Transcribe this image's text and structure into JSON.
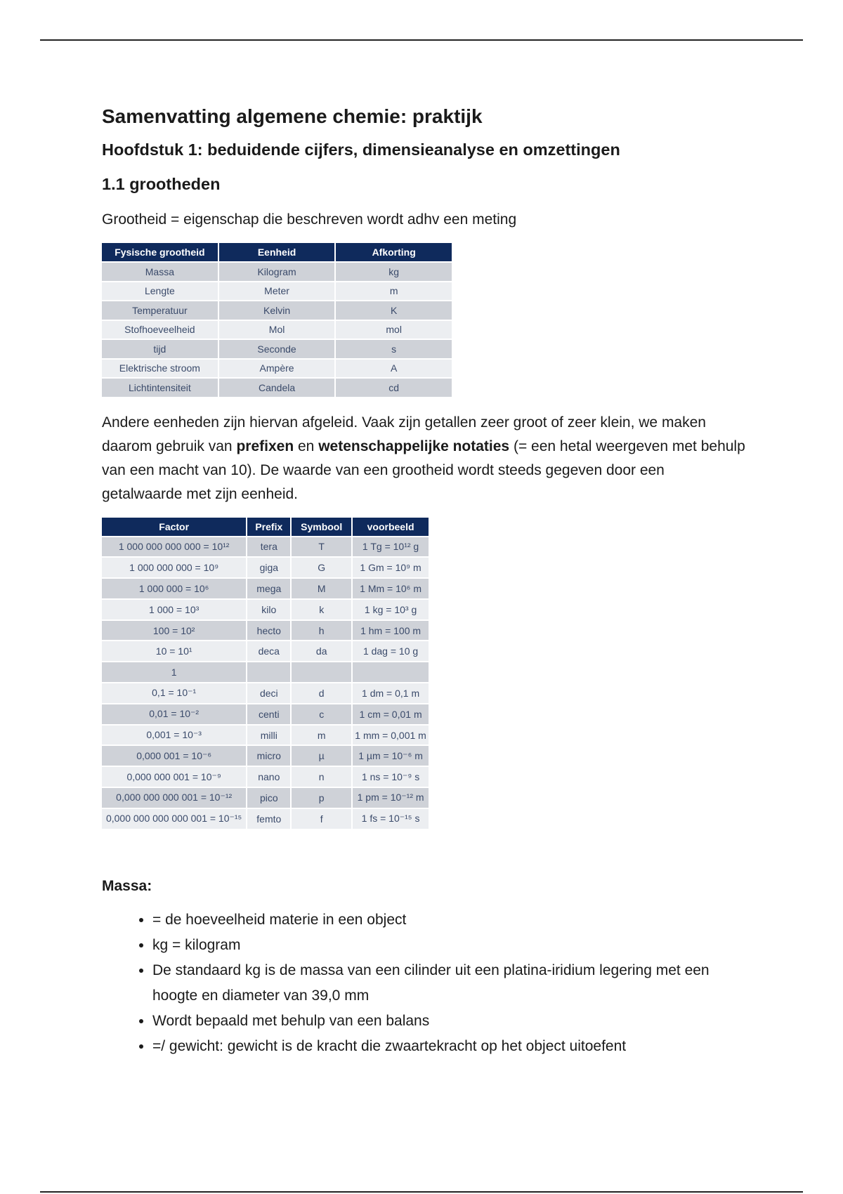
{
  "title": "Samenvatting algemene chemie: praktijk",
  "chapter": "Hoofdstuk 1: beduidende cijfers, dimensieanalyse en omzettingen",
  "section": "1.1 grootheden",
  "definition": "Grootheid = eigenschap die beschreven wordt adhv een meting",
  "table1": {
    "headers": [
      "Fysische grootheid",
      "Eenheid",
      "Afkorting"
    ],
    "rows": [
      [
        "Massa",
        "Kilogram",
        "kg"
      ],
      [
        "Lengte",
        "Meter",
        "m"
      ],
      [
        "Temperatuur",
        "Kelvin",
        "K"
      ],
      [
        "Stofhoeveelheid",
        "Mol",
        "mol"
      ],
      [
        "tijd",
        "Seconde",
        "s"
      ],
      [
        "Elektrische stroom",
        "Ampère",
        "A"
      ],
      [
        "Lichtintensiteit",
        "Candela",
        "cd"
      ]
    ]
  },
  "para": {
    "t1": "Andere eenheden zijn hiervan afgeleid. Vaak zijn getallen zeer groot of zeer klein, we maken daarom gebruik van ",
    "b1": "prefixen",
    "t2": " en ",
    "b2": "wetenschappelijke notaties",
    "t3": " (= een hetal weergeven met behulp van een macht van 10). De waarde van een grootheid wordt steeds gegeven door een getalwaarde met zijn eenheid."
  },
  "table2": {
    "headers": [
      "Factor",
      "Prefix",
      "Symbool",
      "voorbeeld"
    ],
    "rows": [
      [
        "1 000 000 000 000 = 10¹²",
        "tera",
        "T",
        "1 Tg = 10¹² g"
      ],
      [
        "1 000 000 000 = 10⁹",
        "giga",
        "G",
        "1 Gm = 10⁹ m"
      ],
      [
        "1 000 000 = 10⁶",
        "mega",
        "M",
        "1 Mm = 10⁶ m"
      ],
      [
        "1 000 = 10³",
        "kilo",
        "k",
        "1 kg = 10³ g"
      ],
      [
        "100 = 10²",
        "hecto",
        "h",
        "1 hm = 100 m"
      ],
      [
        "10 = 10¹",
        "deca",
        "da",
        "1 dag = 10 g"
      ],
      [
        "1",
        "",
        "",
        ""
      ],
      [
        "0,1 = 10⁻¹",
        "deci",
        "d",
        "1 dm = 0,1 m"
      ],
      [
        "0,01 = 10⁻²",
        "centi",
        "c",
        "1 cm = 0,01 m"
      ],
      [
        "0,001 = 10⁻³",
        "milli",
        "m",
        "1 mm = 0,001 m"
      ],
      [
        "0,000 001 = 10⁻⁶",
        "micro",
        "µ",
        "1 µm = 10⁻⁶ m"
      ],
      [
        "0,000 000 001 = 10⁻⁹",
        "nano",
        "n",
        "1 ns = 10⁻⁹ s"
      ],
      [
        "0,000 000 000 001 = 10⁻¹²",
        "pico",
        "p",
        "1 pm = 10⁻¹² m"
      ],
      [
        "0,000 000 000 000 001 = 10⁻¹⁵",
        "femto",
        "f",
        "1 fs = 10⁻¹⁵ s"
      ]
    ]
  },
  "massa": {
    "heading": "Massa:",
    "bullets": [
      "= de hoeveelheid materie in een object",
      "kg = kilogram",
      "De standaard kg is de massa van een cilinder uit een platina-iridium legering met een hoogte en diameter van 39,0 mm",
      "Wordt bepaald met behulp van een balans",
      "=/ gewicht: gewicht is de kracht die zwaartekracht op het object uitoefent"
    ]
  }
}
